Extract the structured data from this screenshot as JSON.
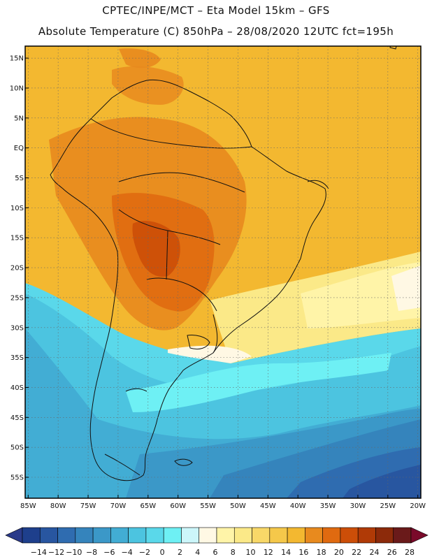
{
  "title": {
    "line1": "CPTEC/INPE/MCT –  Eta Model 15km – GFS",
    "line2": "Absolute Temperature (C) 850hPa – 28/08/2020 12UTC fct=195h"
  },
  "axes": {
    "lat_labels": [
      "15N",
      "10N",
      "5N",
      "EQ",
      "5S",
      "10S",
      "15S",
      "20S",
      "25S",
      "30S",
      "35S",
      "40S",
      "45S",
      "50S",
      "55S"
    ],
    "lat_values": [
      15,
      10,
      5,
      0,
      -5,
      -10,
      -15,
      -20,
      -25,
      -30,
      -35,
      -40,
      -45,
      -50,
      -55
    ],
    "lon_labels": [
      "85W",
      "80W",
      "75W",
      "70W",
      "65W",
      "60W",
      "55W",
      "50W",
      "45W",
      "40W",
      "35W",
      "30W",
      "25W",
      "20W"
    ],
    "lon_values": [
      -85,
      -80,
      -75,
      -70,
      -65,
      -60,
      -55,
      -50,
      -45,
      -40,
      -35,
      -30,
      -25,
      -20
    ]
  },
  "colorbar": {
    "labels": [
      "-14",
      "-12",
      "-10",
      "-8",
      "-6",
      "-4",
      "-2",
      "0",
      "2",
      "4",
      "6",
      "8",
      "10",
      "12",
      "14",
      "16",
      "18",
      "20",
      "22",
      "24",
      "26",
      "28"
    ],
    "colors": [
      "#1e3f8c",
      "#2856a0",
      "#2f6cb0",
      "#3584bc",
      "#3b98c8",
      "#42add4",
      "#4cc4e0",
      "#5ad8ea",
      "#6ef0f4",
      "#ccf6fa",
      "#fff8e4",
      "#fff4a8",
      "#fbe988",
      "#f8d868",
      "#f5c84a",
      "#f3b830",
      "#e88a1e",
      "#e06a10",
      "#cc4e08",
      "#b03a06",
      "#8c2a0a",
      "#6a1a1a"
    ],
    "under_color": "#2a3a8a",
    "over_color": "#7a0a2a"
  },
  "map_region": {
    "lon_min": -85.5,
    "lon_max": -19.5,
    "lat_min": -58.5,
    "lat_max": 17.0
  }
}
